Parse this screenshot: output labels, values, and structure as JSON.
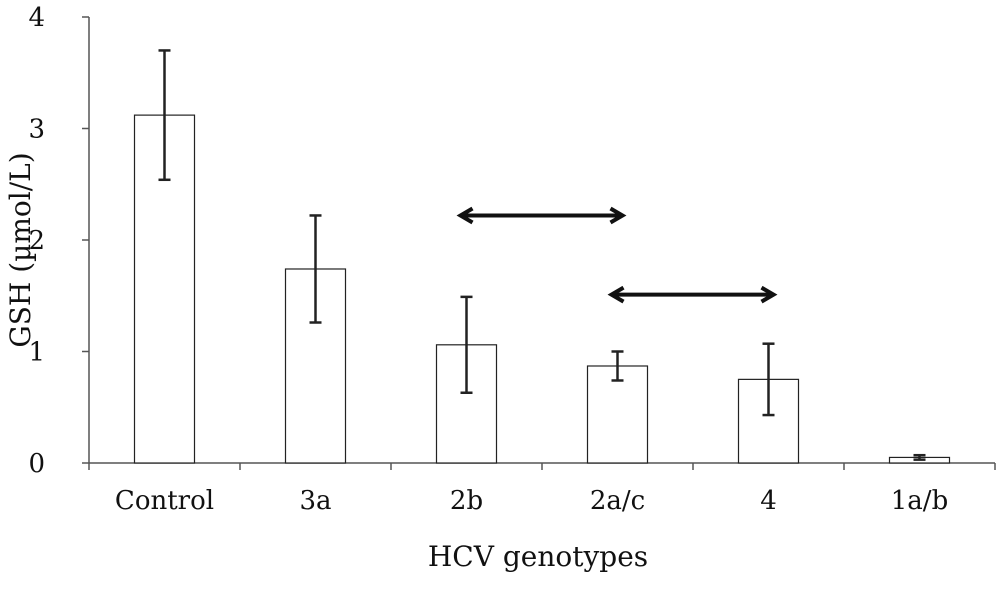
{
  "chart_data": {
    "type": "bar",
    "title": "",
    "xlabel": "HCV genotypes",
    "ylabel": "GSH (µmol/L)",
    "ylim": [
      0,
      4
    ],
    "yticks": [
      0,
      1,
      2,
      3,
      4
    ],
    "grid": false,
    "categories": [
      "Control",
      "3a",
      "2b",
      "2a/c",
      "4",
      "1a/b"
    ],
    "values": [
      3.12,
      1.74,
      1.06,
      0.87,
      0.75,
      0.05
    ],
    "errors": [
      0.58,
      0.48,
      0.43,
      0.13,
      0.32,
      0.02
    ],
    "annotations": [
      {
        "type": "double-arrow",
        "from_category": "2b",
        "to_category": "2a/c",
        "y": 2.22
      },
      {
        "type": "double-arrow",
        "from_category": "2a/c",
        "to_category": "4",
        "y": 1.51
      }
    ]
  },
  "colors": {
    "bar_fill": "#ffffff",
    "bar_stroke": "#222222",
    "text": "#111111"
  }
}
